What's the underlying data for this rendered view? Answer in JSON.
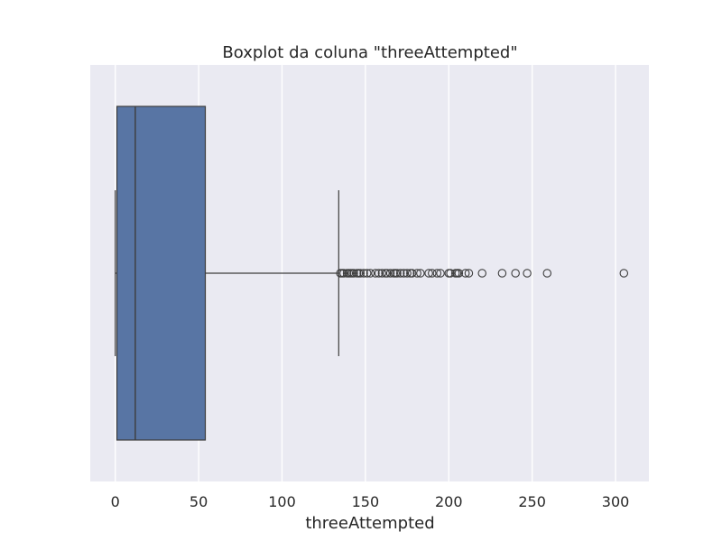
{
  "chart_data": {
    "type": "boxplot",
    "title": "Boxplot da coluna \"threeAttempted\"",
    "xlabel": "threeAttempted",
    "ylabel": "",
    "xlim": [
      -15,
      320
    ],
    "xticks": [
      0,
      50,
      100,
      150,
      200,
      250,
      300
    ],
    "xtick_labels": [
      "0",
      "50",
      "100",
      "150",
      "200",
      "250",
      "300"
    ],
    "grid": true,
    "orientation": "horizontal",
    "box": {
      "whisker_low": 0,
      "q1": 1,
      "median": 12,
      "q3": 54,
      "whisker_high": 134
    },
    "outliers": [
      135,
      136,
      137,
      139,
      140,
      141,
      142,
      143,
      145,
      146,
      147,
      149,
      151,
      153,
      156,
      158,
      160,
      162,
      163,
      165,
      167,
      168,
      169,
      171,
      173,
      175,
      177,
      178,
      181,
      183,
      188,
      190,
      193,
      195,
      200,
      201,
      204,
      205,
      206,
      210,
      212,
      220,
      232,
      240,
      247,
      259,
      305
    ],
    "colors": {
      "plot_background": "#eaeaf2",
      "grid": "#ffffff",
      "box_fill": "#5875a4",
      "line": "#3d3d3d"
    }
  }
}
